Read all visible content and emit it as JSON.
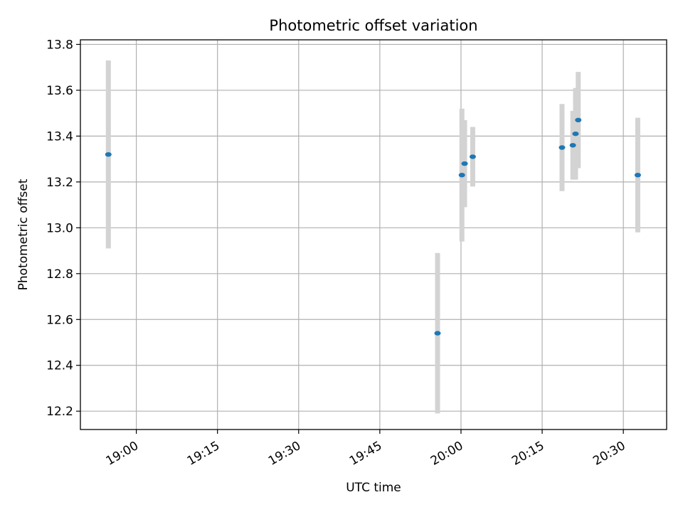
{
  "chart_data": {
    "type": "scatter",
    "title": "Photometric offset variation",
    "xlabel": "UTC time",
    "ylabel": "Photometric offset",
    "x_tick_labels": [
      "19:00",
      "19:15",
      "19:30",
      "19:45",
      "20:00",
      "20:15",
      "20:30"
    ],
    "y_tick_labels": [
      "12.2",
      "12.4",
      "12.6",
      "12.8",
      "13.0",
      "13.2",
      "13.4",
      "13.6",
      "13.8"
    ],
    "xlim": [
      "18:49:40",
      "20:38:00"
    ],
    "ylim": [
      12.12,
      13.82
    ],
    "grid": true,
    "colors": {
      "point": "#1f77b4",
      "errorbar": "#d3d3d3",
      "grid": "#b0b0b0"
    },
    "points": [
      {
        "x": "18:54:50",
        "y": 13.32,
        "err": 0.41
      },
      {
        "x": "19:55:40",
        "y": 12.54,
        "err": 0.35
      },
      {
        "x": "20:00:10",
        "y": 13.23,
        "err": 0.29
      },
      {
        "x": "20:00:40",
        "y": 13.28,
        "err": 0.19
      },
      {
        "x": "20:02:10",
        "y": 13.31,
        "err": 0.13
      },
      {
        "x": "20:18:40",
        "y": 13.35,
        "err": 0.19
      },
      {
        "x": "20:20:40",
        "y": 13.36,
        "err": 0.15
      },
      {
        "x": "20:21:10",
        "y": 13.41,
        "err": 0.2
      },
      {
        "x": "20:21:40",
        "y": 13.47,
        "err": 0.21
      },
      {
        "x": "20:32:40",
        "y": 13.23,
        "err": 0.25
      }
    ]
  }
}
